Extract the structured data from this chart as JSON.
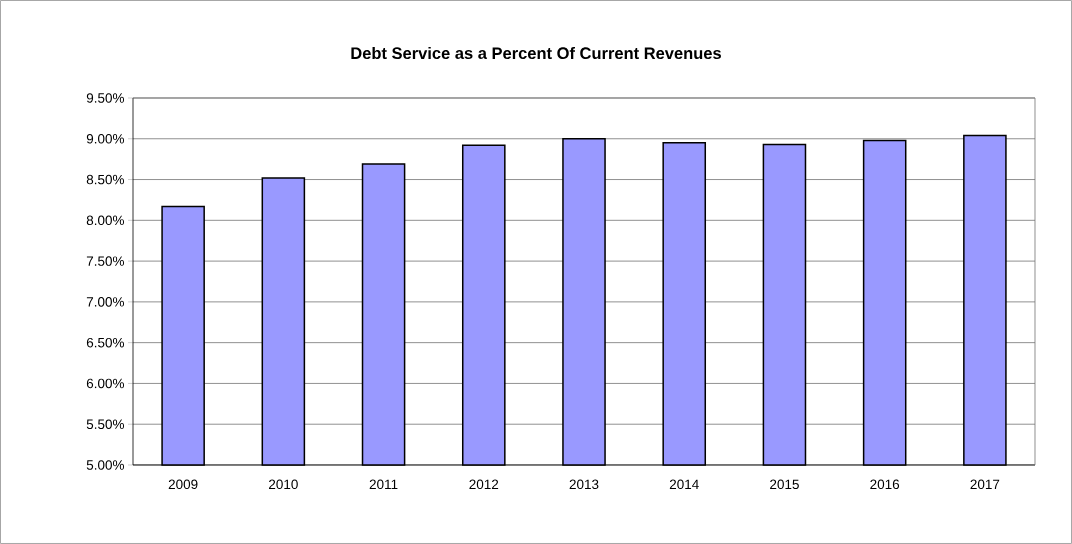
{
  "chart_data": {
    "type": "bar",
    "title": "Debt Service as a Percent Of Current Revenues",
    "categories": [
      "2009",
      "2010",
      "2011",
      "2012",
      "2013",
      "2014",
      "2015",
      "2016",
      "2017"
    ],
    "values": [
      8.17,
      8.52,
      8.69,
      8.92,
      9.0,
      8.95,
      8.93,
      8.98,
      9.04
    ],
    "color": "#9999ff",
    "ylim": [
      5.0,
      9.5
    ],
    "yticks": [
      {
        "value": 5.0,
        "label": "5.00%"
      },
      {
        "value": 5.5,
        "label": "5.50%"
      },
      {
        "value": 6.0,
        "label": "6.00%"
      },
      {
        "value": 6.5,
        "label": "6.50%"
      },
      {
        "value": 7.0,
        "label": "7.00%"
      },
      {
        "value": 7.5,
        "label": "7.50%"
      },
      {
        "value": 8.0,
        "label": "8.00%"
      },
      {
        "value": 8.5,
        "label": "8.50%"
      },
      {
        "value": 9.0,
        "label": "9.00%"
      },
      {
        "value": 9.5,
        "label": "9.50%"
      }
    ],
    "grid": "y"
  }
}
